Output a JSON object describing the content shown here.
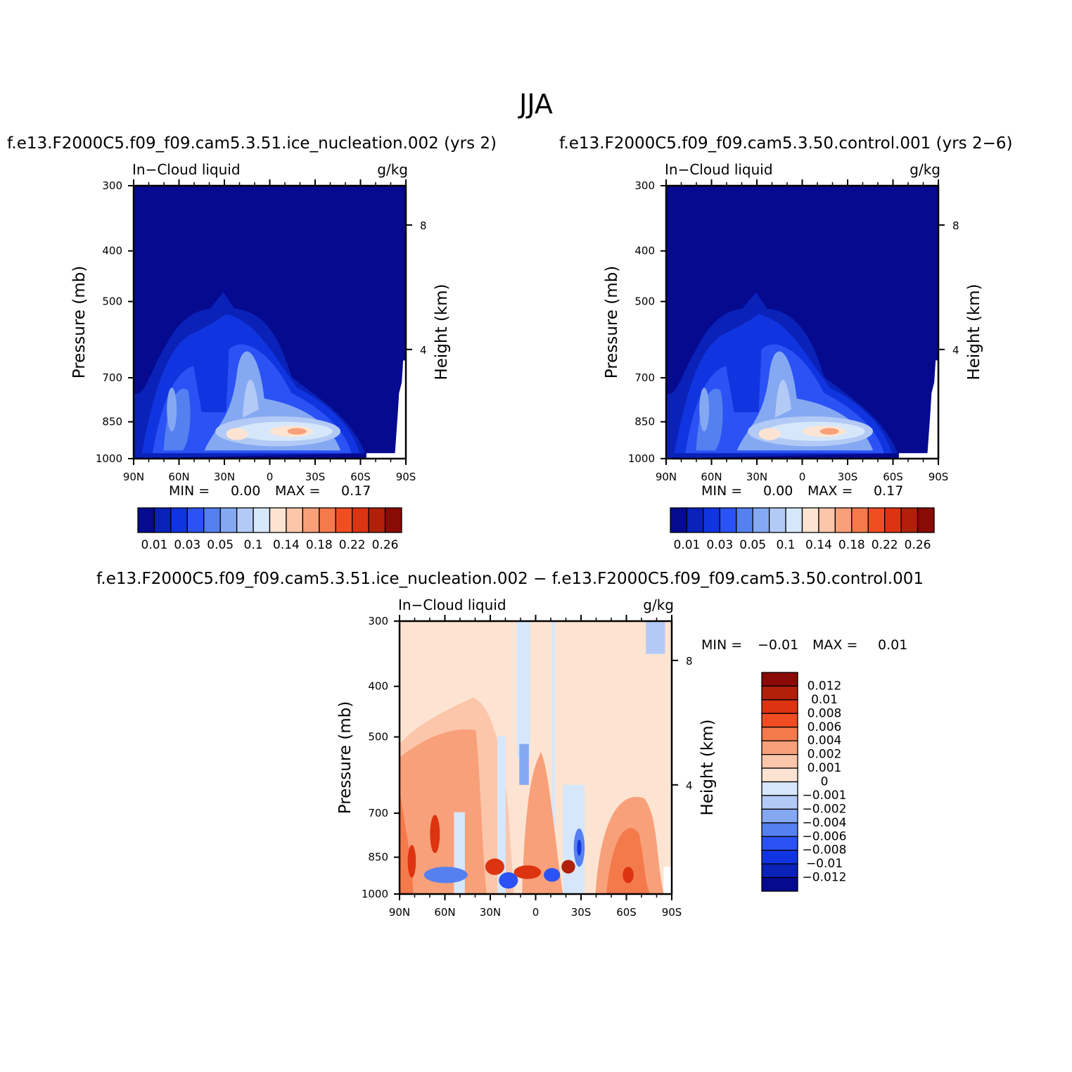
{
  "figure": {
    "title": "JJA"
  },
  "chart_data": [
    {
      "type": "heatmap",
      "title": "f.e13.F2000C5.f09_f09.cam5.3.51.ice_nucleation.002  (yrs  2)",
      "left_label": "In−Cloud  liquid",
      "units": "g/kg",
      "xlabel": "",
      "ylabel": "Pressure  (mb)",
      "y2label": "Height  (km)",
      "x_ticks": [
        "90N",
        "60N",
        "30N",
        "0",
        "30S",
        "60S",
        "90S"
      ],
      "y_ticks": [
        "300",
        "400",
        "500",
        "700",
        "850",
        "1000"
      ],
      "y2_ticks": [
        "8",
        "4"
      ],
      "xlim": [
        "90N",
        "90S"
      ],
      "ylim": [
        1000,
        300
      ],
      "min_label": "MIN  =",
      "min_value": "0.00",
      "max_label": "MAX  =",
      "max_value": "0.17",
      "colorbar_labels": [
        "0.01",
        "0.03",
        "0.05",
        "0.1",
        "0.14",
        "0.18",
        "0.22",
        "0.26"
      ],
      "colorbar_colors": [
        "#050a8f",
        "#0a22b8",
        "#1035e0",
        "#2a52f5",
        "#5580f0",
        "#85a8f2",
        "#b3caf6",
        "#d7e7fb",
        "#fde4d2",
        "#fcc6ab",
        "#f8a07a",
        "#f47a4c",
        "#f04d23",
        "#dc3410",
        "#b0200a",
        "#8a0a06"
      ]
    },
    {
      "type": "heatmap",
      "title": "f.e13.F2000C5.f09_f09.cam5.3.50.control.001  (yrs  2−6)",
      "left_label": "In−Cloud  liquid",
      "units": "g/kg",
      "xlabel": "",
      "ylabel": "Pressure  (mb)",
      "y2label": "Height  (km)",
      "x_ticks": [
        "90N",
        "60N",
        "30N",
        "0",
        "30S",
        "60S",
        "90S"
      ],
      "y_ticks": [
        "300",
        "400",
        "500",
        "700",
        "850",
        "1000"
      ],
      "y2_ticks": [
        "8",
        "4"
      ],
      "xlim": [
        "90N",
        "90S"
      ],
      "ylim": [
        1000,
        300
      ],
      "min_label": "MIN  =",
      "min_value": "0.00",
      "max_label": "MAX  =",
      "max_value": "0.17",
      "colorbar_labels": [
        "0.01",
        "0.03",
        "0.05",
        "0.1",
        "0.14",
        "0.18",
        "0.22",
        "0.26"
      ],
      "colorbar_colors": [
        "#050a8f",
        "#0a22b8",
        "#1035e0",
        "#2a52f5",
        "#5580f0",
        "#85a8f2",
        "#b3caf6",
        "#d7e7fb",
        "#fde4d2",
        "#fcc6ab",
        "#f8a07a",
        "#f47a4c",
        "#f04d23",
        "#dc3410",
        "#b0200a",
        "#8a0a06"
      ]
    },
    {
      "type": "heatmap",
      "title": "f.e13.F2000C5.f09_f09.cam5.3.51.ice_nucleation.002  −  f.e13.F2000C5.f09_f09.cam5.3.50.control.001",
      "left_label": "In−Cloud  liquid",
      "units": "g/kg",
      "xlabel": "",
      "ylabel": "Pressure  (mb)",
      "y2label": "Height  (km)",
      "x_ticks": [
        "90N",
        "60N",
        "30N",
        "0",
        "30S",
        "60S",
        "90S"
      ],
      "y_ticks": [
        "300",
        "400",
        "500",
        "700",
        "850",
        "1000"
      ],
      "y2_ticks": [
        "8",
        "4"
      ],
      "xlim": [
        "90N",
        "90S"
      ],
      "ylim": [
        1000,
        300
      ],
      "min_label": "MIN  =",
      "min_value": "−0.01",
      "max_label": "MAX  =",
      "max_value": "0.01",
      "colorbar_labels": [
        "0.012",
        "0.01",
        "0.008",
        "0.006",
        "0.004",
        "0.002",
        "0.001",
        "0",
        "−0.001",
        "−0.002",
        "−0.004",
        "−0.006",
        "−0.008",
        "−0.01",
        "−0.012"
      ],
      "colorbar_colors": [
        "#8a0a06",
        "#b0200a",
        "#dc3410",
        "#f04d23",
        "#f47a4c",
        "#f8a07a",
        "#fcc6ab",
        "#fde4d2",
        "#d7e7fb",
        "#b3caf6",
        "#85a8f2",
        "#5580f0",
        "#2a52f5",
        "#1035e0",
        "#0a22b8",
        "#050a8f"
      ]
    }
  ]
}
